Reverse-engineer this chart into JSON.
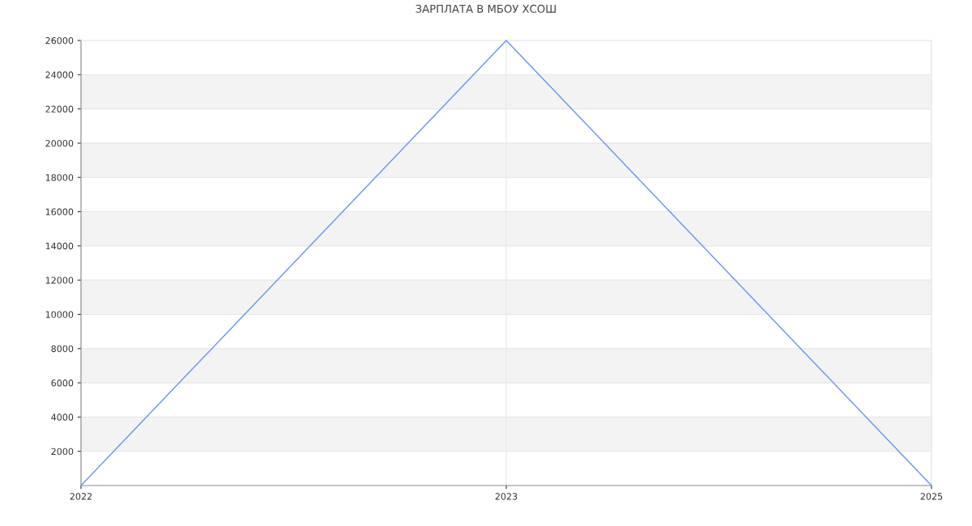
{
  "chart_data": {
    "type": "line",
    "title": "ЗАРПЛАТА В МБОУ ХСОШ",
    "categories": [
      "2022",
      "2023",
      "2025"
    ],
    "series": [
      {
        "color": "#6495ed",
        "values": [
          0,
          26000,
          0
        ]
      }
    ],
    "ylim": [
      0,
      26000
    ],
    "yticks": [
      2000,
      4000,
      6000,
      8000,
      10000,
      12000,
      14000,
      16000,
      18000,
      20000,
      22000,
      24000,
      26000
    ],
    "grid": true,
    "marker": "none",
    "line_style": "solid",
    "bands": [
      {
        "axis": "y",
        "from": 2000,
        "to": 4000,
        "color": "#f3f3f3"
      },
      {
        "axis": "y",
        "from": 6000,
        "to": 8000,
        "color": "#f3f3f3"
      },
      {
        "axis": "y",
        "from": 10000,
        "to": 12000,
        "color": "#f3f3f3"
      },
      {
        "axis": "y",
        "from": 14000,
        "to": 16000,
        "color": "#f3f3f3"
      },
      {
        "axis": "y",
        "from": 18000,
        "to": 20000,
        "color": "#f3f3f3"
      },
      {
        "axis": "y",
        "from": 22000,
        "to": 24000,
        "color": "#f3f3f3"
      }
    ]
  }
}
